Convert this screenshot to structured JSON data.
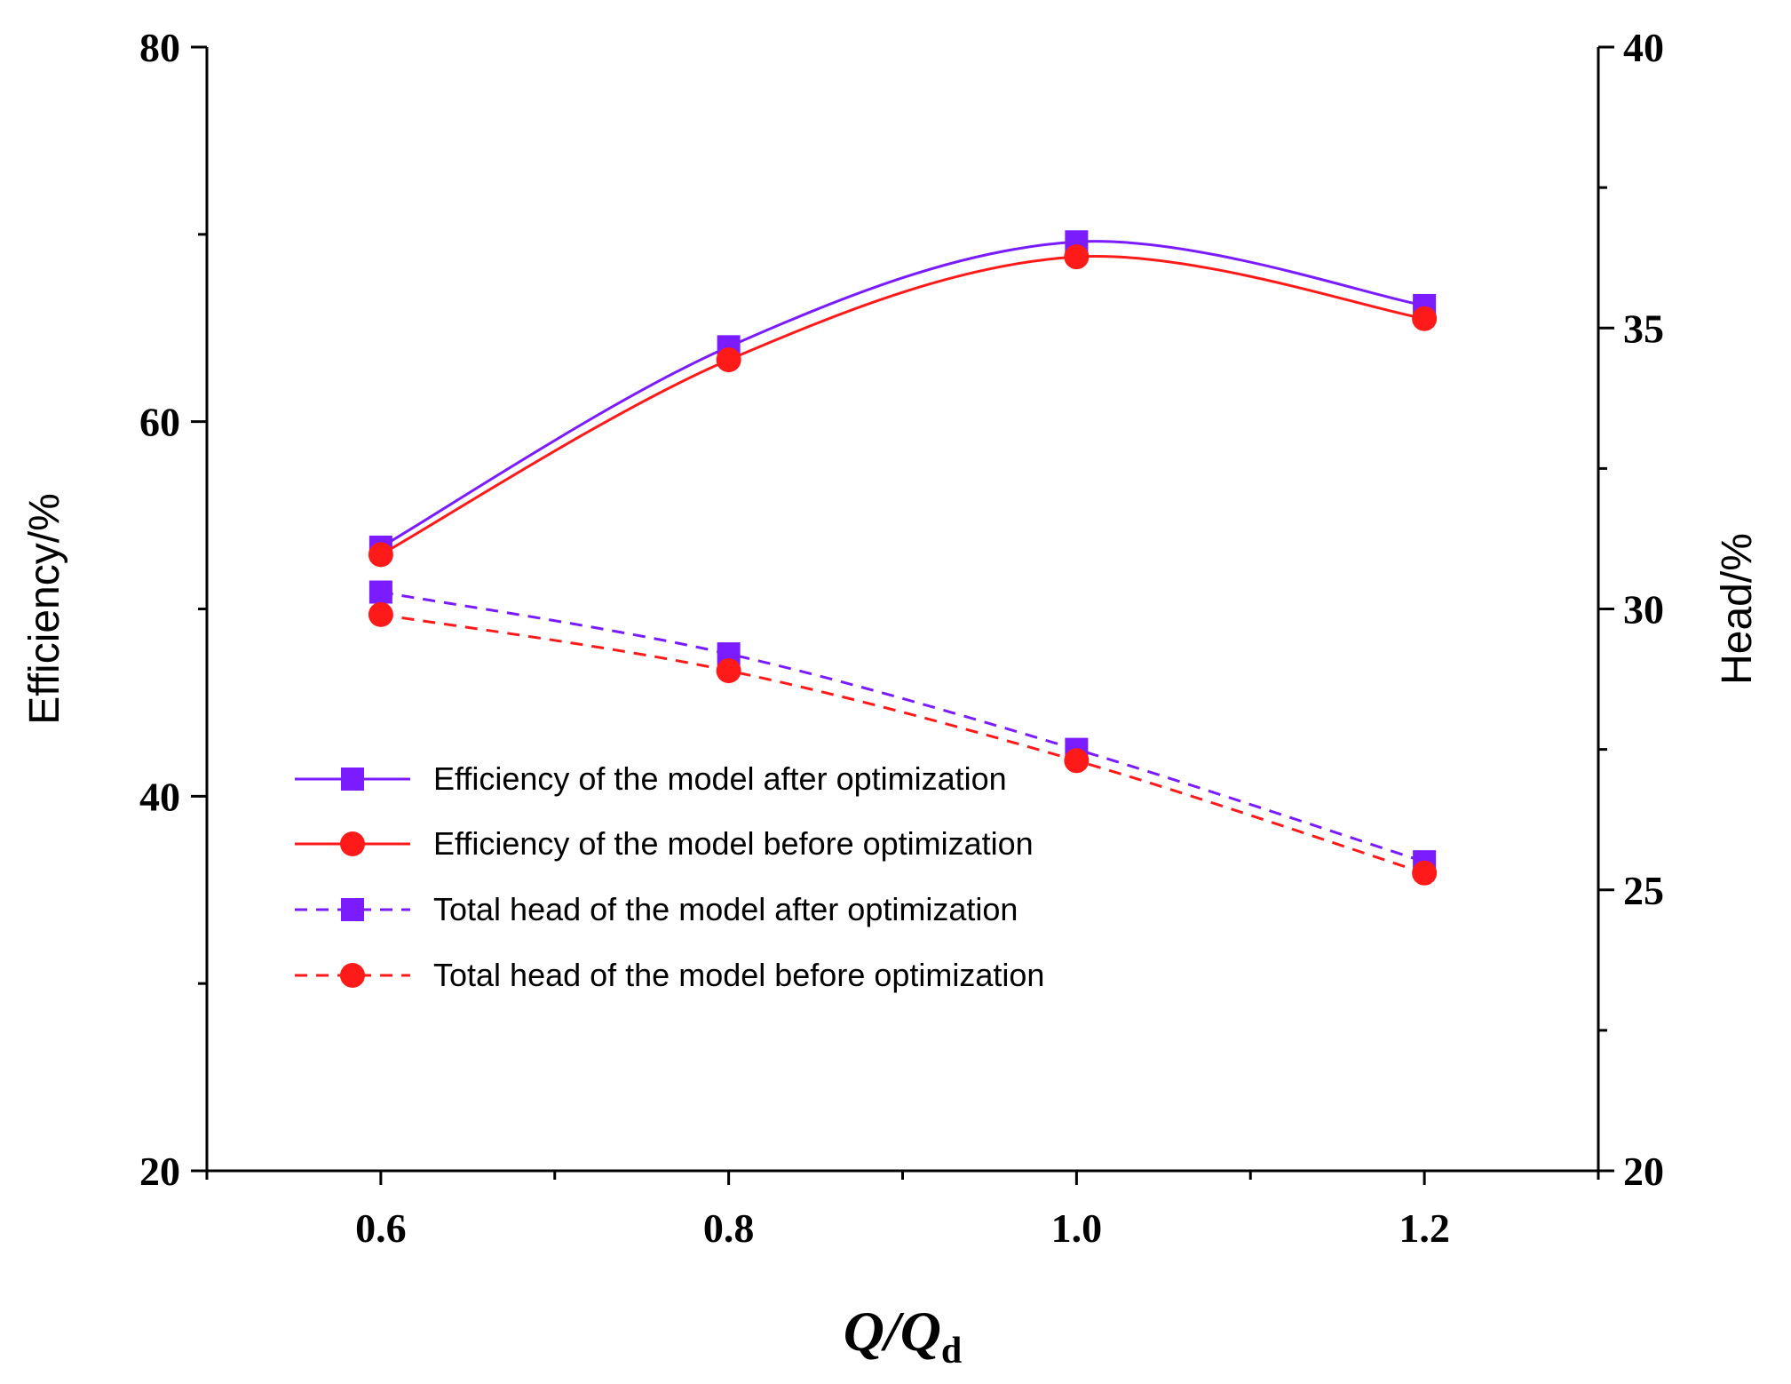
{
  "chart_data": {
    "type": "line",
    "x": [
      0.6,
      0.8,
      1.0,
      1.2
    ],
    "x_ticks": [
      "0.6",
      "0.8",
      "1.0",
      "1.2"
    ],
    "xlim": [
      0.5,
      1.3
    ],
    "xlabel_main": "Q",
    "xlabel_sep": "/",
    "xlabel_q": "Q",
    "xlabel_sub": "d",
    "ylabel_left": "Efficiency/%",
    "ylim_left": [
      20,
      80
    ],
    "yticks_left": [
      "20",
      "40",
      "60",
      "80"
    ],
    "ylabel_right": "Head/%",
    "ylim_right": [
      20,
      40
    ],
    "yticks_right": [
      "20",
      "25",
      "30",
      "35",
      "40"
    ],
    "legend_position": "center-left",
    "series": [
      {
        "name": "Efficiency of the model after optimization",
        "axis": "left",
        "values": [
          53.3,
          64.0,
          69.6,
          66.2
        ],
        "color": "#7a1cff",
        "marker": "square",
        "line": "solid"
      },
      {
        "name": "Efficiency of the model before optimization",
        "axis": "left",
        "values": [
          52.9,
          63.3,
          68.8,
          65.5
        ],
        "color": "#ff1a1a",
        "marker": "circle",
        "line": "solid"
      },
      {
        "name": "Total head of the model after optimization",
        "axis": "right",
        "values": [
          30.3,
          29.2,
          27.5,
          25.5
        ],
        "color": "#7a1cff",
        "marker": "square",
        "line": "dashed"
      },
      {
        "name": "Total head of the model before optimization",
        "axis": "right",
        "values": [
          29.9,
          28.9,
          27.3,
          25.3
        ],
        "color": "#ff1a1a",
        "marker": "circle",
        "line": "dashed"
      }
    ]
  }
}
